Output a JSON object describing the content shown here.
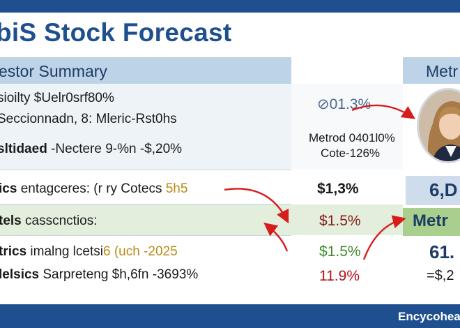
{
  "title": "biS Stock Forecast",
  "header": {
    "left": "estor Summary",
    "right": "Metr"
  },
  "rows": [
    {
      "text": "sioilty $Uelr0srf80%"
    },
    {
      "text": "Seccionnadn, 8: Mleric-Rst0hs"
    },
    {
      "text_bold": "sltidaed",
      "text_rest": " -Nectere 9-%n -$,20%"
    },
    {
      "text_bold": "ics",
      "text_rest": " entagceres: (r ry Cotecs ",
      "accent": "5h5"
    },
    {
      "text_bold": "tels",
      "text_rest": " casscnctios:"
    },
    {
      "text_bold": "trics",
      "text_rest": " imalng lcetsi",
      "accent": "6 (uch -2025"
    },
    {
      "text_bold": "lelsics",
      "text_rest": " Sarpreteng $h,6fn -3693%"
    }
  ],
  "metrics": {
    "m1": "01.3%",
    "m2a": "Metrod 0401l0%",
    "m2b": "Cote-126%",
    "m3": "$1,3%",
    "m4": "$1.5%",
    "m5": "$1.5%",
    "m6": "11.9%"
  },
  "right_values": {
    "v1": "6,D",
    "v2": "Metr",
    "v3": "61.",
    "v4": "=$,2"
  },
  "footer": {
    "brand": "Encycoheat"
  },
  "colors": {
    "primary_blue": "#1f4f8f",
    "title_blue": "#1e4f8e",
    "header_band": "#bcd3e8",
    "green_band": "#a9cf8f",
    "red_text": "#b0121b",
    "green_text": "#3f8a2c",
    "arrow_red": "#d81c1c"
  }
}
